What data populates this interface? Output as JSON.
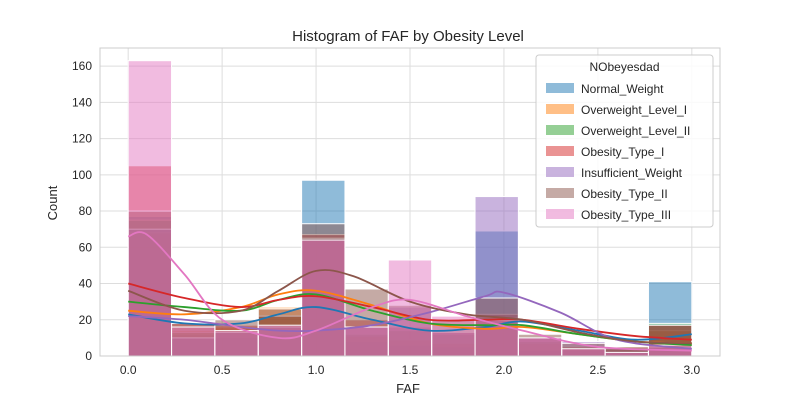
{
  "chart_data": {
    "type": "bar",
    "title": "Histogram of FAF by Obesity Level",
    "xlabel": "FAF",
    "ylabel": "Count",
    "xlim": [
      -0.15,
      3.15
    ],
    "ylim": [
      0,
      170
    ],
    "xticks": [
      "0.0",
      "0.5",
      "1.0",
      "1.5",
      "2.0",
      "2.5",
      "3.0"
    ],
    "yticks": [
      "0",
      "20",
      "40",
      "60",
      "80",
      "100",
      "120",
      "140",
      "160"
    ],
    "grid": true,
    "legend": {
      "title": "NObeyesdad",
      "placement": "top-right"
    },
    "bin_edges": [
      0.0,
      0.2308,
      0.4615,
      0.6923,
      0.9231,
      1.1538,
      1.3846,
      1.6154,
      1.8462,
      2.0769,
      2.3077,
      2.5385,
      2.7692,
      3.0
    ],
    "series": [
      {
        "name": "Normal_Weight",
        "color": "#1f77b4",
        "values": [
          77,
          12,
          10,
          12,
          97,
          8,
          6,
          5,
          69,
          3,
          3,
          3,
          41
        ],
        "kde": [
          [
            0,
            23
          ],
          [
            0.3,
            18
          ],
          [
            0.6,
            18
          ],
          [
            0.8,
            23
          ],
          [
            1.0,
            27
          ],
          [
            1.3,
            20
          ],
          [
            1.6,
            14
          ],
          [
            1.9,
            16
          ],
          [
            2.1,
            19
          ],
          [
            2.4,
            14
          ],
          [
            2.7,
            9
          ],
          [
            3.0,
            12
          ]
        ]
      },
      {
        "name": "Overweight_Level_I",
        "color": "#ff7f0e",
        "values": [
          68,
          14,
          16,
          27,
          64,
          11,
          9,
          7,
          20,
          7,
          5,
          5,
          14
        ],
        "kde": [
          [
            0,
            25
          ],
          [
            0.3,
            23
          ],
          [
            0.6,
            27
          ],
          [
            0.8,
            34
          ],
          [
            1.0,
            36
          ],
          [
            1.3,
            28
          ],
          [
            1.6,
            18
          ],
          [
            1.9,
            15
          ],
          [
            2.1,
            16
          ],
          [
            2.4,
            12
          ],
          [
            2.7,
            8
          ],
          [
            3.0,
            7
          ]
        ]
      },
      {
        "name": "Overweight_Level_II",
        "color": "#2ca02c",
        "values": [
          75,
          13,
          14,
          22,
          65,
          12,
          14,
          12,
          21,
          8,
          4,
          5,
          18
        ],
        "kde": [
          [
            0,
            30
          ],
          [
            0.3,
            27
          ],
          [
            0.6,
            25
          ],
          [
            0.8,
            31
          ],
          [
            1.0,
            34
          ],
          [
            1.3,
            25
          ],
          [
            1.6,
            18
          ],
          [
            1.9,
            17
          ],
          [
            2.1,
            17
          ],
          [
            2.4,
            12
          ],
          [
            2.7,
            8
          ],
          [
            3.0,
            6
          ]
        ]
      },
      {
        "name": "Obesity_Type_I",
        "color": "#d62728",
        "values": [
          105,
          18,
          17,
          22,
          67,
          20,
          16,
          13,
          23,
          10,
          5,
          5,
          17
        ],
        "kde": [
          [
            0,
            40
          ],
          [
            0.3,
            32
          ],
          [
            0.6,
            27
          ],
          [
            0.8,
            31
          ],
          [
            1.0,
            33
          ],
          [
            1.3,
            27
          ],
          [
            1.6,
            20
          ],
          [
            1.9,
            20
          ],
          [
            2.1,
            20
          ],
          [
            2.4,
            15
          ],
          [
            2.7,
            11
          ],
          [
            3.0,
            9
          ]
        ]
      },
      {
        "name": "Insufficient_Weight",
        "color": "#9467bd",
        "values": [
          70,
          10,
          13,
          16,
          65,
          16,
          27,
          13,
          88,
          10,
          8,
          4,
          5
        ],
        "kde": [
          [
            0,
            22
          ],
          [
            0.3,
            20
          ],
          [
            0.6,
            16
          ],
          [
            0.8,
            14
          ],
          [
            1.0,
            14
          ],
          [
            1.3,
            17
          ],
          [
            1.6,
            24
          ],
          [
            1.9,
            33
          ],
          [
            2.0,
            35
          ],
          [
            2.3,
            24
          ],
          [
            2.6,
            9
          ],
          [
            3.0,
            4
          ]
        ]
      },
      {
        "name": "Obesity_Type_II",
        "color": "#8c564b",
        "values": [
          80,
          18,
          20,
          26,
          73,
          37,
          28,
          20,
          32,
          12,
          7,
          5,
          17
        ],
        "kde": [
          [
            0,
            36
          ],
          [
            0.3,
            25
          ],
          [
            0.6,
            25
          ],
          [
            0.8,
            36
          ],
          [
            1.0,
            47
          ],
          [
            1.2,
            44
          ],
          [
            1.5,
            30
          ],
          [
            1.8,
            23
          ],
          [
            2.1,
            20
          ],
          [
            2.4,
            13
          ],
          [
            2.7,
            8
          ],
          [
            3.0,
            7
          ]
        ]
      },
      {
        "name": "Obesity_Type_III",
        "color": "#e377c2",
        "values": [
          163,
          16,
          14,
          17,
          64,
          16,
          53,
          22,
          20,
          10,
          4,
          2,
          6
        ],
        "kde": [
          [
            0,
            66
          ],
          [
            0.1,
            67
          ],
          [
            0.3,
            45
          ],
          [
            0.5,
            20
          ],
          [
            0.8,
            10
          ],
          [
            1.0,
            14
          ],
          [
            1.3,
            27
          ],
          [
            1.5,
            31
          ],
          [
            1.8,
            22
          ],
          [
            2.1,
            14
          ],
          [
            2.5,
            5
          ],
          [
            3.0,
            3
          ]
        ]
      }
    ]
  }
}
